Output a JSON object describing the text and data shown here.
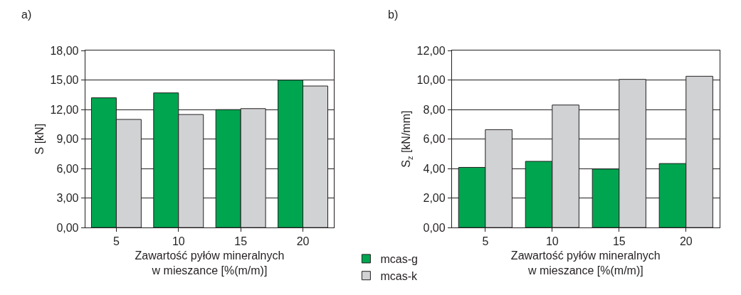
{
  "chart_data": [
    {
      "type": "bar",
      "title": "a)",
      "categories": [
        "5",
        "10",
        "15",
        "20"
      ],
      "xlabel": "Zawartość pyłów mineralnych\nw mieszance [%(m/m)]",
      "ylabel": "S [kN]",
      "ylim": [
        0,
        18
      ],
      "yticks": [
        {
          "value": 0,
          "label": "0,00"
        },
        {
          "value": 3,
          "label": "3,00"
        },
        {
          "value": 6,
          "label": "6,00"
        },
        {
          "value": 9,
          "label": "9,00"
        },
        {
          "value": 12,
          "label": "12,00"
        },
        {
          "value": 15,
          "label": "15,00"
        },
        {
          "value": 18,
          "label": "18,00"
        }
      ],
      "grid": "y",
      "legend": "bottom right",
      "series": [
        {
          "name": "mcas-g",
          "color": "#00a550",
          "values": [
            13.2,
            13.7,
            12.0,
            15.0
          ]
        },
        {
          "name": "mcas-k",
          "color": "#d1d2d4",
          "values": [
            11.0,
            11.5,
            12.1,
            14.4
          ]
        }
      ]
    },
    {
      "type": "bar",
      "title": "b)",
      "categories": [
        "5",
        "10",
        "15",
        "20"
      ],
      "xlabel": "Zawartość pyłów mineralnych\nw mieszance [%(m/m)]",
      "ylabel": "S$_{z}$ [kN/mm]",
      "ylim": [
        0,
        12
      ],
      "yticks": [
        {
          "value": 0,
          "label": "0,00"
        },
        {
          "value": 2,
          "label": "2,00"
        },
        {
          "value": 4,
          "label": "4,00"
        },
        {
          "value": 6,
          "label": "6,00"
        },
        {
          "value": 8,
          "label": "8,00"
        },
        {
          "value": 10,
          "label": "10,00"
        },
        {
          "value": 12,
          "label": "12,00"
        }
      ],
      "grid": "y",
      "legend": "bottom left",
      "series": [
        {
          "name": "mcas-g",
          "color": "#00a550",
          "values": [
            4.08,
            4.49,
            3.97,
            4.34
          ]
        },
        {
          "name": "mcas-k",
          "color": "#d1d2d4",
          "values": [
            6.64,
            8.31,
            10.05,
            10.26
          ]
        }
      ]
    }
  ]
}
